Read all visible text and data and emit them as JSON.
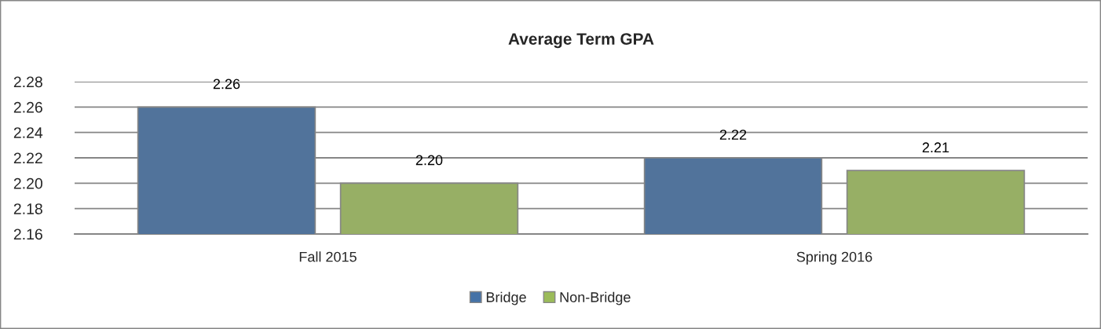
{
  "chart_data": {
    "type": "bar",
    "title": "Average Term GPA",
    "categories": [
      "Fall 2015",
      "Spring 2016"
    ],
    "series": [
      {
        "name": "Bridge",
        "color": "#4572a7",
        "values": [
          2.26,
          2.22
        ],
        "value_labels": [
          "2.26",
          "2.22"
        ]
      },
      {
        "name": "Non-Bridge",
        "color": "#9bbb59",
        "values": [
          2.2,
          2.21
        ],
        "value_labels": [
          "2.20",
          "2.21"
        ]
      }
    ],
    "ylim": [
      2.16,
      2.28
    ],
    "yticks": [
      {
        "value": 2.16,
        "label": "2.16"
      },
      {
        "value": 2.18,
        "label": "2.18"
      },
      {
        "value": 2.2,
        "label": "2.20"
      },
      {
        "value": 2.22,
        "label": "2.22"
      },
      {
        "value": 2.24,
        "label": "2.24"
      },
      {
        "value": 2.26,
        "label": "2.26"
      },
      {
        "value": 2.28,
        "label": "2.28"
      }
    ],
    "grid": "y",
    "legend": "bottom"
  }
}
